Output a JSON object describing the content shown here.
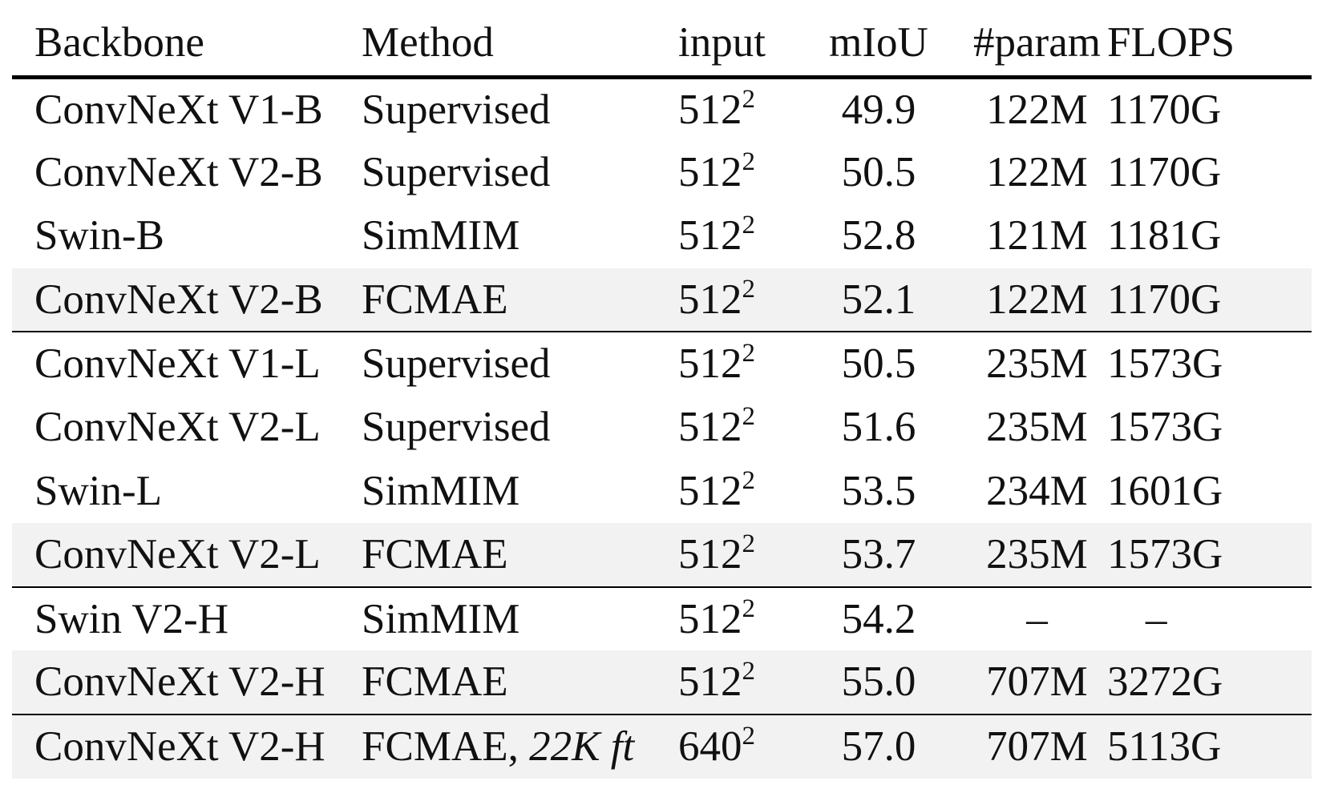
{
  "table": {
    "headers": {
      "backbone": "Backbone",
      "method": "Method",
      "input": "input",
      "miou": "mIoU",
      "param": "#param",
      "flops": "FLOPS"
    },
    "rows": [
      {
        "backbone": "ConvNeXt V1-B",
        "method": "Supervised",
        "method_note": "",
        "input_base": "512",
        "input_exp": "2",
        "miou": "49.9",
        "miou_best": false,
        "param": "122M",
        "flops": "1170G",
        "shaded": false,
        "group_start": false
      },
      {
        "backbone": "ConvNeXt V2-B",
        "method": "Supervised",
        "method_note": "",
        "input_base": "512",
        "input_exp": "2",
        "miou": "50.5",
        "miou_best": false,
        "param": "122M",
        "flops": "1170G",
        "shaded": false,
        "group_start": false
      },
      {
        "backbone": "Swin-B",
        "method": "SimMIM",
        "method_note": "",
        "input_base": "512",
        "input_exp": "2",
        "miou": "52.8",
        "miou_best": true,
        "param": "121M",
        "flops": "1181G",
        "shaded": false,
        "group_start": false
      },
      {
        "backbone": "ConvNeXt V2-B",
        "method": "FCMAE",
        "method_note": "",
        "input_base": "512",
        "input_exp": "2",
        "miou": "52.1",
        "miou_best": false,
        "param": "122M",
        "flops": "1170G",
        "shaded": true,
        "group_start": false
      },
      {
        "backbone": "ConvNeXt V1-L",
        "method": "Supervised",
        "method_note": "",
        "input_base": "512",
        "input_exp": "2",
        "miou": "50.5",
        "miou_best": false,
        "param": "235M",
        "flops": "1573G",
        "shaded": false,
        "group_start": true
      },
      {
        "backbone": "ConvNeXt V2-L",
        "method": "Supervised",
        "method_note": "",
        "input_base": "512",
        "input_exp": "2",
        "miou": "51.6",
        "miou_best": false,
        "param": "235M",
        "flops": "1573G",
        "shaded": false,
        "group_start": false
      },
      {
        "backbone": "Swin-L",
        "method": "SimMIM",
        "method_note": "",
        "input_base": "512",
        "input_exp": "2",
        "miou": "53.5",
        "miou_best": false,
        "param": "234M",
        "flops": "1601G",
        "shaded": false,
        "group_start": false
      },
      {
        "backbone": "ConvNeXt V2-L",
        "method": "FCMAE",
        "method_note": "",
        "input_base": "512",
        "input_exp": "2",
        "miou": "53.7",
        "miou_best": true,
        "param": "235M",
        "flops": "1573G",
        "shaded": true,
        "group_start": false
      },
      {
        "backbone": "Swin V2-H",
        "method": "SimMIM",
        "method_note": "",
        "input_base": "512",
        "input_exp": "2",
        "miou": "54.2",
        "miou_best": false,
        "param": "–",
        "flops": "–",
        "shaded": false,
        "group_start": true
      },
      {
        "backbone": "ConvNeXt V2-H",
        "method": "FCMAE",
        "method_note": "",
        "input_base": "512",
        "input_exp": "2",
        "miou": "55.0",
        "miou_best": true,
        "param": "707M",
        "flops": "3272G",
        "shaded": true,
        "group_start": false
      },
      {
        "backbone": "ConvNeXt V2-H",
        "method": "FCMAE, ",
        "method_note": "22K ft",
        "input_base": "640",
        "input_exp": "2",
        "miou": "57.0",
        "miou_best": true,
        "param": "707M",
        "flops": "5113G",
        "shaded": true,
        "group_start": true
      }
    ]
  }
}
